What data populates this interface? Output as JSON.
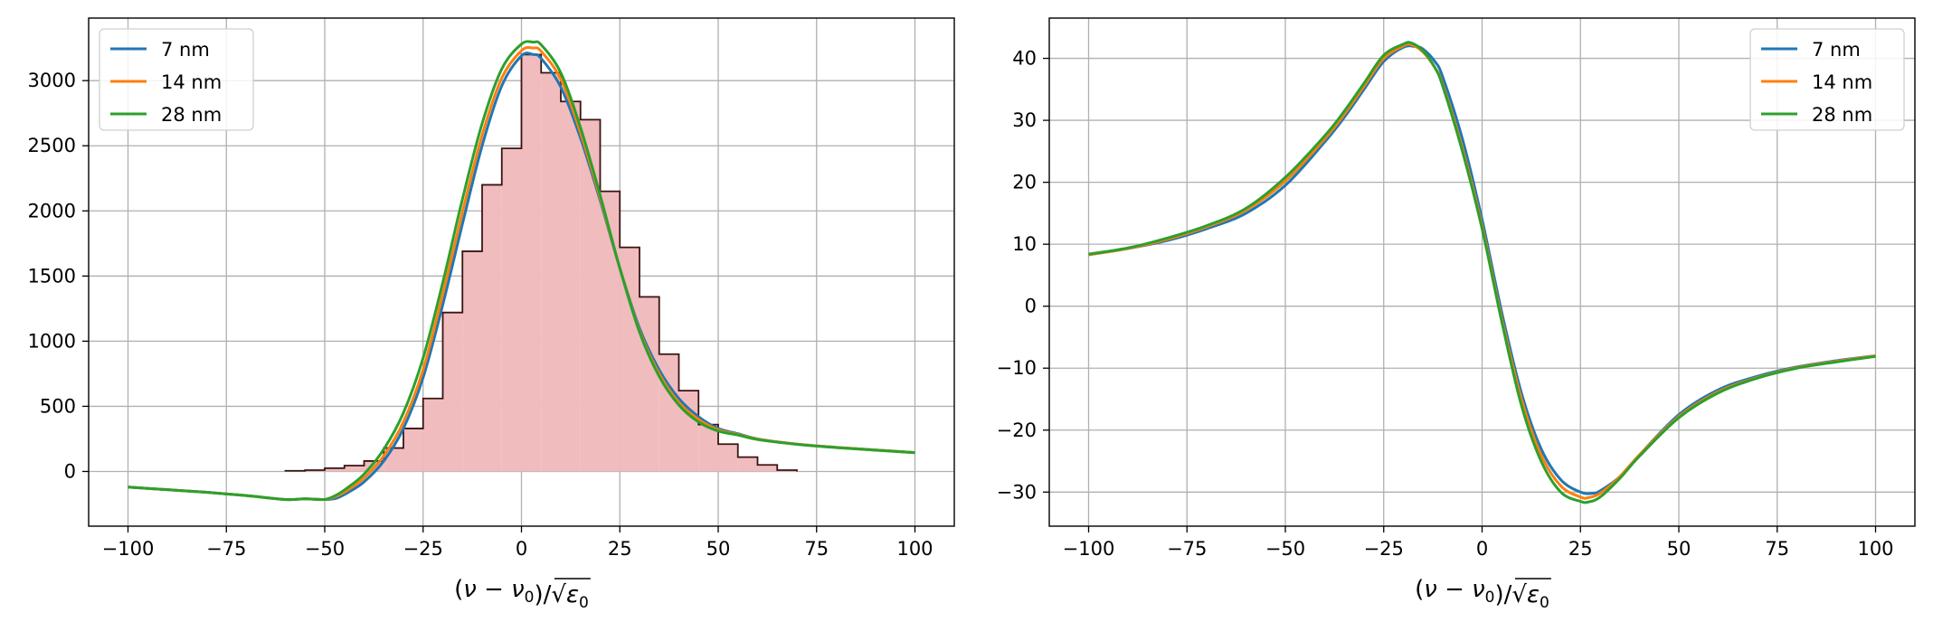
{
  "colors": {
    "series": [
      "#1f77b4",
      "#ff7f0e",
      "#2ca02c"
    ],
    "hist_fill": "#f0bcbe",
    "hist_edge": "#3a1414",
    "grid": "#b0b0b0"
  },
  "chart_data": [
    {
      "type": "line",
      "title": "",
      "xlabel": "(ν − ν0)/√ε0",
      "ylabel": "",
      "xlim": [
        -110,
        110
      ],
      "ylim": [
        -420,
        3480
      ],
      "xticks": [
        -100,
        -75,
        -50,
        -25,
        0,
        25,
        50,
        75,
        100
      ],
      "xtick_labels": [
        "−100",
        "−75",
        "−50",
        "−25",
        "0",
        "25",
        "50",
        "75",
        "100"
      ],
      "yticks": [
        0,
        500,
        1000,
        1500,
        2000,
        2500,
        3000
      ],
      "ytick_labels": [
        "0",
        "500",
        "1000",
        "1500",
        "2000",
        "2500",
        "3000"
      ],
      "grid": true,
      "legend": {
        "placement": "top-left",
        "entries": [
          "7 nm",
          "14 nm",
          "28 nm"
        ]
      },
      "histogram": {
        "bin_edges": [
          -60,
          -55,
          -50,
          -45,
          -40,
          -35,
          -30,
          -25,
          -20,
          -15,
          -10,
          -5,
          0,
          5,
          10,
          15,
          20,
          25,
          30,
          35,
          40,
          45,
          50,
          55,
          60,
          65,
          70
        ],
        "counts": [
          5,
          10,
          25,
          45,
          80,
          180,
          330,
          560,
          1220,
          1690,
          2200,
          2480,
          3200,
          3060,
          2840,
          2700,
          2150,
          1720,
          1340,
          900,
          620,
          360,
          210,
          110,
          50,
          10
        ]
      },
      "series": [
        {
          "name": "7 nm",
          "x": [
            -100,
            -90,
            -80,
            -70,
            -60,
            -55,
            -50,
            -47,
            -44,
            -40,
            -35,
            -30,
            -25,
            -20,
            -15,
            -10,
            -5,
            0,
            3,
            5,
            10,
            15,
            20,
            25,
            30,
            35,
            40,
            45,
            50,
            55,
            60,
            70,
            80,
            90,
            100
          ],
          "y": [
            -120,
            -140,
            -160,
            -185,
            -215,
            -210,
            -215,
            -205,
            -160,
            -80,
            80,
            330,
            720,
            1280,
            1900,
            2500,
            2960,
            3190,
            3200,
            3170,
            2950,
            2560,
            2080,
            1560,
            1100,
            780,
            560,
            420,
            330,
            290,
            250,
            210,
            185,
            165,
            145
          ]
        },
        {
          "name": "14 nm",
          "x": [
            -100,
            -90,
            -80,
            -70,
            -60,
            -55,
            -50,
            -47,
            -44,
            -40,
            -35,
            -30,
            -25,
            -20,
            -15,
            -10,
            -5,
            0,
            3,
            5,
            10,
            15,
            20,
            25,
            30,
            35,
            40,
            45,
            50,
            55,
            60,
            70,
            80,
            90,
            100
          ],
          "y": [
            -120,
            -140,
            -160,
            -185,
            -215,
            -210,
            -215,
            -190,
            -140,
            -50,
            120,
            380,
            780,
            1360,
            1990,
            2580,
            3020,
            3230,
            3250,
            3225,
            3010,
            2600,
            2100,
            1560,
            1080,
            750,
            530,
            400,
            320,
            285,
            248,
            210,
            185,
            165,
            145
          ]
        },
        {
          "name": "28 nm",
          "x": [
            -100,
            -90,
            -80,
            -70,
            -60,
            -55,
            -50,
            -47,
            -44,
            -40,
            -35,
            -30,
            -25,
            -20,
            -15,
            -10,
            -5,
            0,
            3,
            5,
            10,
            15,
            20,
            25,
            30,
            35,
            40,
            45,
            50,
            55,
            60,
            70,
            80,
            90,
            100
          ],
          "y": [
            -120,
            -140,
            -160,
            -185,
            -215,
            -210,
            -215,
            -180,
            -120,
            -20,
            170,
            450,
            870,
            1450,
            2090,
            2670,
            3090,
            3280,
            3295,
            3275,
            3060,
            2640,
            2120,
            1560,
            1070,
            730,
            510,
            380,
            310,
            280,
            245,
            208,
            183,
            163,
            144
          ]
        }
      ]
    },
    {
      "type": "line",
      "title": "",
      "xlabel": "(ν − ν0)/√ε0",
      "ylabel": "",
      "xlim": [
        -110,
        110
      ],
      "ylim": [
        -35.5,
        46.5
      ],
      "xticks": [
        -100,
        -75,
        -50,
        -25,
        0,
        25,
        50,
        75,
        100
      ],
      "xtick_labels": [
        "−100",
        "−75",
        "−50",
        "−25",
        "0",
        "25",
        "50",
        "75",
        "100"
      ],
      "yticks": [
        -30,
        -20,
        -10,
        0,
        10,
        20,
        30,
        40
      ],
      "ytick_labels": [
        "−30",
        "−20",
        "−10",
        "0",
        "10",
        "20",
        "30",
        "40"
      ],
      "grid": true,
      "legend": {
        "placement": "top-right",
        "entries": [
          "7 nm",
          "14 nm",
          "28 nm"
        ]
      },
      "series": [
        {
          "name": "7 nm",
          "x": [
            -100,
            -90,
            -80,
            -70,
            -60,
            -50,
            -40,
            -35,
            -30,
            -25,
            -20,
            -17,
            -15,
            -12,
            -10,
            -5,
            0,
            5,
            10,
            15,
            20,
            25,
            28,
            30,
            35,
            40,
            50,
            60,
            70,
            80,
            90,
            100
          ],
          "y": [
            8.3,
            9.3,
            10.6,
            12.5,
            15.0,
            19.5,
            26.5,
            30.5,
            35.0,
            39.5,
            41.8,
            41.9,
            41.5,
            39.5,
            37.0,
            27.0,
            14.0,
            -1.0,
            -14.0,
            -23.0,
            -28.0,
            -30.0,
            -30.2,
            -29.8,
            -27.5,
            -24.0,
            -17.5,
            -13.5,
            -11.3,
            -9.8,
            -8.8,
            -8.0
          ]
        },
        {
          "name": "14 nm",
          "x": [
            -100,
            -90,
            -80,
            -70,
            -60,
            -50,
            -40,
            -35,
            -30,
            -25,
            -20,
            -18,
            -15,
            -12,
            -10,
            -5,
            0,
            5,
            10,
            15,
            20,
            25,
            27,
            30,
            35,
            40,
            50,
            60,
            70,
            80,
            90,
            100
          ],
          "y": [
            8.3,
            9.3,
            10.8,
            12.8,
            15.5,
            20.2,
            27.0,
            31.0,
            35.5,
            40.0,
            42.0,
            42.2,
            41.0,
            38.5,
            35.8,
            25.5,
            13.0,
            -2.0,
            -15.0,
            -24.0,
            -29.0,
            -30.8,
            -30.9,
            -30.2,
            -27.5,
            -24.0,
            -17.8,
            -13.8,
            -11.5,
            -9.9,
            -8.9,
            -8.0
          ]
        },
        {
          "name": "28 nm",
          "x": [
            -100,
            -90,
            -80,
            -70,
            -60,
            -50,
            -40,
            -35,
            -30,
            -25,
            -20,
            -18,
            -15,
            -12,
            -10,
            -5,
            0,
            5,
            10,
            15,
            20,
            25,
            27,
            30,
            35,
            40,
            50,
            60,
            70,
            80,
            90,
            100
          ],
          "y": [
            8.4,
            9.4,
            11.0,
            13.0,
            15.8,
            20.8,
            27.5,
            31.5,
            36.0,
            40.5,
            42.3,
            42.5,
            41.2,
            38.5,
            35.5,
            25.0,
            12.5,
            -2.5,
            -16.0,
            -25.0,
            -30.0,
            -31.5,
            -31.6,
            -30.8,
            -27.8,
            -24.2,
            -18.0,
            -14.0,
            -11.6,
            -10.0,
            -9.0,
            -8.1
          ]
        }
      ]
    }
  ]
}
